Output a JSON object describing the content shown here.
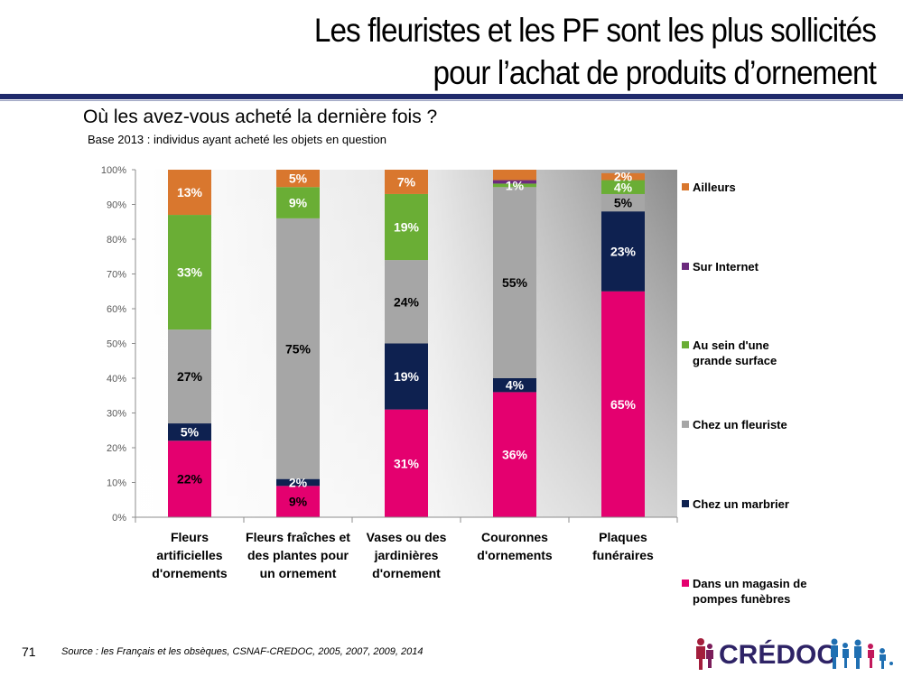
{
  "header": {
    "title_line1": "Les fleuristes et les PF sont les plus sollicités",
    "title_line2": "pour l’achat de produits d’ornement"
  },
  "subtitle": "Où les avez-vous acheté la dernière fois ?",
  "base_note": "Base 2013 : individus ayant acheté les objets en question",
  "footer": {
    "page_number": "71",
    "source": "Source : les Français et les obsèques, CSNAF-CREDOC, 2005, 2007, 2009, 2014",
    "logo_text": "CRÉDOC"
  },
  "colors": {
    "magasin": "#e4006f",
    "marbrier": "#0e2150",
    "fleuriste": "#a6a6a6",
    "grande_surface": "#6aae35",
    "internet": "#6b2a7d",
    "ailleurs": "#d9772e"
  },
  "chart_data": {
    "type": "bar",
    "stacked": true,
    "categories": [
      [
        "Fleurs",
        "artificielles",
        "d'ornements"
      ],
      [
        "Fleurs fraîches et",
        "des plantes pour",
        "un ornement"
      ],
      [
        "Vases ou des",
        "jardinières",
        "d'ornement"
      ],
      [
        "Couronnes",
        "d'ornements"
      ],
      [
        "Plaques",
        "funéraires"
      ]
    ],
    "ylim": [
      0,
      100
    ],
    "yticks": [
      "0%",
      "10%",
      "20%",
      "30%",
      "40%",
      "50%",
      "60%",
      "70%",
      "80%",
      "90%",
      "100%"
    ],
    "series": [
      {
        "name": "Dans un magasin de pompes funèbres",
        "legend_lines": [
          "Dans un magasin de",
          "pompes funèbres"
        ],
        "color_key": "magasin",
        "values": [
          22,
          9,
          31,
          36,
          65
        ],
        "labels": [
          "22%",
          "9%",
          "31%",
          "36%",
          "65%"
        ],
        "label_color": [
          "#000",
          "#000",
          "#fff",
          "#fff",
          "#fff"
        ]
      },
      {
        "name": "Chez un marbrier",
        "legend_lines": [
          "Chez un marbrier"
        ],
        "color_key": "marbrier",
        "values": [
          5,
          2,
          19,
          4,
          23
        ],
        "labels": [
          "5%",
          "2%",
          "19%",
          "4%",
          "23%"
        ],
        "label_color": [
          "#fff",
          "#fff",
          "#fff",
          "#fff",
          "#fff"
        ]
      },
      {
        "name": "Chez un fleuriste",
        "legend_lines": [
          "Chez un fleuriste"
        ],
        "color_key": "fleuriste",
        "values": [
          27,
          75,
          24,
          55,
          5
        ],
        "labels": [
          "27%",
          "75%",
          "24%",
          "55%",
          "5%"
        ],
        "label_color": [
          "#000",
          "#000",
          "#000",
          "#000",
          "#000"
        ]
      },
      {
        "name": "Au sein d'une grande surface",
        "legend_lines": [
          "Au sein d'une",
          "grande surface"
        ],
        "color_key": "grande_surface",
        "values": [
          33,
          9,
          19,
          1,
          4
        ],
        "labels": [
          "33%",
          "9%",
          "19%",
          "1%",
          "4%"
        ],
        "label_color": [
          "#fff",
          "#fff",
          "#fff",
          "#fff",
          "#fff"
        ]
      },
      {
        "name": "Sur Internet",
        "legend_lines": [
          "Sur Internet"
        ],
        "color_key": "internet",
        "values": [
          0,
          0,
          0,
          1,
          0
        ],
        "labels": [
          "",
          "",
          "",
          "",
          ""
        ],
        "label_color": [
          "#fff",
          "#fff",
          "#fff",
          "#fff",
          "#fff"
        ]
      },
      {
        "name": "Ailleurs",
        "legend_lines": [
          "Ailleurs"
        ],
        "color_key": "ailleurs",
        "values": [
          13,
          5,
          7,
          3,
          2
        ],
        "labels": [
          "13%",
          "5%",
          "7%",
          "",
          "2%"
        ],
        "label_color": [
          "#fff",
          "#fff",
          "#fff",
          "#fff",
          "#fff"
        ]
      }
    ]
  }
}
